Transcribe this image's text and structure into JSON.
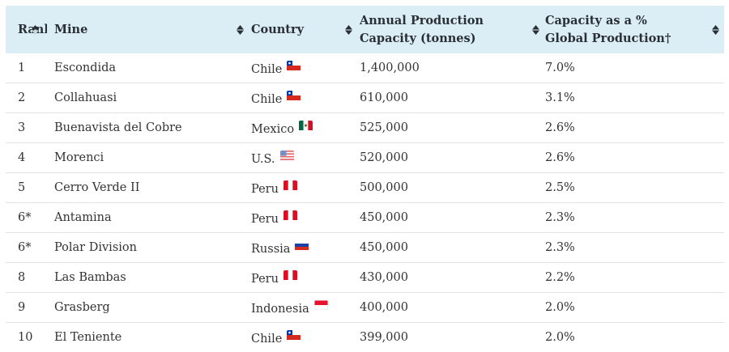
{
  "table": {
    "headers": {
      "rank": "Rank",
      "mine": "Mine",
      "country": "Country",
      "capacity": "Annual Production\nCapacity (tonnes)",
      "share": "Capacity as a %\nGlobal Production†"
    },
    "sort_icons": [
      "sort-up-icon",
      "sort-both-icon",
      "sort-both-icon",
      "sort-both-icon",
      "sort-both-icon"
    ],
    "rows": [
      {
        "rank": "1",
        "mine": "Escondida",
        "country": "Chile",
        "flag": "chile-flag-icon",
        "capacity": "1,400,000",
        "share": "7.0%"
      },
      {
        "rank": "2",
        "mine": "Collahuasi",
        "country": "Chile",
        "flag": "chile-flag-icon",
        "capacity": "610,000",
        "share": "3.1%"
      },
      {
        "rank": "3",
        "mine": "Buenavista del Cobre",
        "country": "Mexico",
        "flag": "mexico-flag-icon",
        "capacity": "525,000",
        "share": "2.6%"
      },
      {
        "rank": "4",
        "mine": "Morenci",
        "country": "U.S.",
        "flag": "usa-flag-icon",
        "capacity": "520,000",
        "share": "2.6%"
      },
      {
        "rank": "5",
        "mine": "Cerro Verde II",
        "country": "Peru",
        "flag": "peru-flag-icon",
        "capacity": "500,000",
        "share": "2.5%"
      },
      {
        "rank": "6*",
        "mine": "Antamina",
        "country": "Peru",
        "flag": "peru-flag-icon",
        "capacity": "450,000",
        "share": "2.3%"
      },
      {
        "rank": "6*",
        "mine": "Polar Division",
        "country": "Russia",
        "flag": "russia-flag-icon",
        "capacity": "450,000",
        "share": "2.3%"
      },
      {
        "rank": "8",
        "mine": "Las Bambas",
        "country": "Peru",
        "flag": "peru-flag-icon",
        "capacity": "430,000",
        "share": "2.2%"
      },
      {
        "rank": "9",
        "mine": "Grasberg",
        "country": "Indonesia",
        "flag": "indonesia-flag-icon",
        "capacity": "400,000",
        "share": "2.0%"
      },
      {
        "rank": "10",
        "mine": "El Teniente",
        "country": "Chile",
        "flag": "chile-flag-icon",
        "capacity": "399,000",
        "share": "2.0%"
      }
    ]
  },
  "colors": {
    "header_bg": "#dbeef5",
    "header_text": "#2a2f36",
    "row_border": "#e3e3e3",
    "body_text": "#333333"
  }
}
